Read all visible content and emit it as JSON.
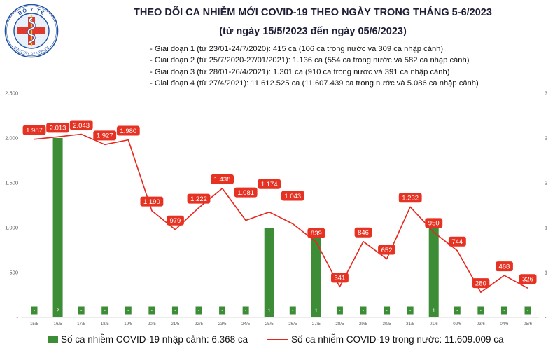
{
  "logo": {
    "top_text": "BỘ Y TẾ",
    "bottom_text": "MINISTRY OF HEALTH"
  },
  "chart_data": {
    "type": "bar",
    "title": "THEO DÕI CA NHIỄM MỚI COVID-19 THEO NGÀY TRONG THÁNG 5-6/2023",
    "subtitle": "(từ ngày 15/5/2023 đến ngày 05/6/2023)",
    "annotations": [
      "- Giai đoạn 1 (từ 23/01-24/7/2020): 415 ca (106 ca trong nước và 309 ca nhập cảnh)",
      "- Giai đoạn 2 (từ 25/7/2020-27/01/2021): 1.136 ca (554 ca trong nước và 582 ca nhập cảnh)",
      "- Giai đoạn 3 (từ 28/01-26/4/2021): 1.301 ca (910 ca trong nước và 391 ca nhập cảnh)",
      "- Giai đoạn 4 (từ 27/4/2021): 11.612.525 ca (11.607.439 ca trong nước và 5.086 ca nhập cảnh)"
    ],
    "categories": [
      "15/5",
      "16/5",
      "17/5",
      "18/5",
      "19/5",
      "20/5",
      "21/5",
      "22/5",
      "23/5",
      "24/5",
      "25/5",
      "26/5",
      "27/5",
      "28/5",
      "29/5",
      "30/5",
      "31/5",
      "01/6",
      "02/6",
      "03/6",
      "04/6",
      "05/6"
    ],
    "series": [
      {
        "name": "Số ca nhiễm COVID-19 nhập cảnh: 6.368 ca",
        "type": "bar",
        "axis": "right",
        "color": "#3c8d36",
        "values": [
          0,
          2,
          0,
          0,
          0,
          0,
          0,
          0,
          0,
          0,
          1,
          0,
          1,
          0,
          0,
          0,
          0,
          1,
          0,
          0,
          0,
          0
        ],
        "value_labels": [
          "-",
          "2",
          "-",
          "-",
          "-",
          "-",
          "-",
          "-",
          "-",
          "-",
          "1",
          "-",
          "1",
          "-",
          "-",
          "-",
          "-",
          "1",
          "-",
          "-",
          "-",
          "-"
        ]
      },
      {
        "name": "Số ca nhiễm COVID-19 trong nước: 11.609.009 ca",
        "type": "line",
        "axis": "left",
        "color": "#e8261d",
        "values": [
          1987,
          2013,
          2043,
          1927,
          1980,
          1190,
          979,
          1222,
          1438,
          1081,
          1174,
          1043,
          839,
          341,
          846,
          652,
          1232,
          950,
          744,
          280,
          468,
          326
        ],
        "value_labels": [
          "1.987",
          "2.013",
          "2.043",
          "1.927",
          "1.980",
          "1.190",
          "979",
          "1.222",
          "1.438",
          "1.081",
          "1.174",
          "1.043",
          "839",
          "341",
          "846",
          "652",
          "1.232",
          "950",
          "744",
          "280",
          "468",
          "326"
        ]
      }
    ],
    "y_left": {
      "range": [
        0,
        2500
      ],
      "ticks": [
        0,
        500,
        1000,
        1500,
        2000,
        2500
      ],
      "tick_labels": [
        "-",
        "500",
        "1.000",
        "1.500",
        "2.000",
        "2.500"
      ]
    },
    "y_right": {
      "range": [
        0,
        2.5
      ],
      "ticks": [
        0,
        0.5,
        1,
        1.5,
        2,
        2.5
      ],
      "tick_labels": [
        "-",
        "1",
        "1",
        "2",
        "2",
        "3"
      ]
    },
    "data_label_box_color": "#e63222",
    "grid": false,
    "legend": "bottom"
  }
}
